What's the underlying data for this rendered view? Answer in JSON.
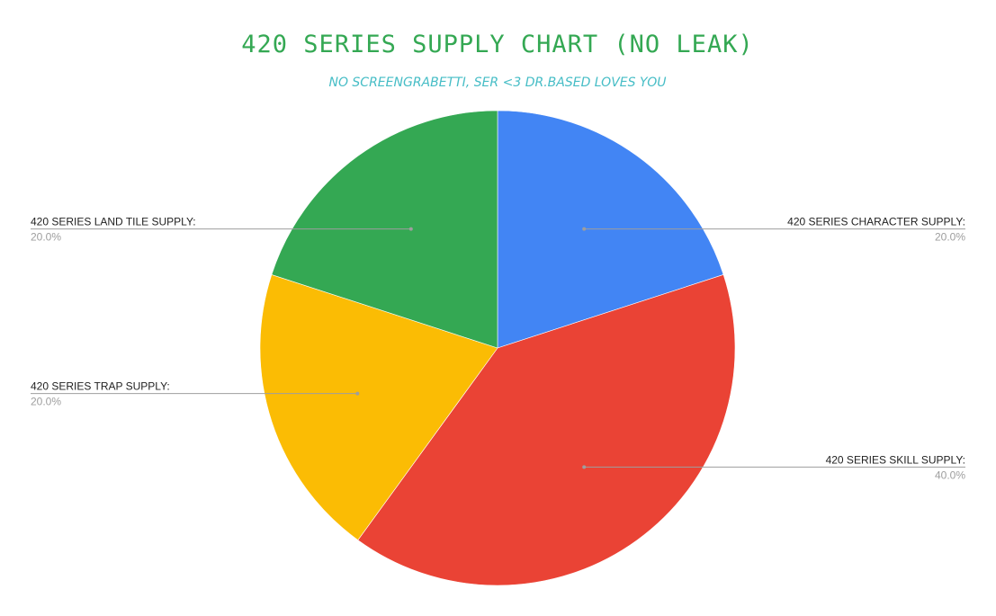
{
  "chart_data": {
    "type": "pie",
    "title": "420 SERIES SUPPLY CHART (NO LEAK)",
    "subtitle": "NO SCREENGRABETTI, SER <3 DR.BASED LOVES YOU",
    "title_color": "#34a853",
    "subtitle_color": "#46bdc6",
    "legend": "none (leader-line labels)",
    "slices": [
      {
        "label": "420 SERIES CHARACTER SUPPLY:",
        "value": 20,
        "percent_label": "20.0%",
        "color": "#4285f4"
      },
      {
        "label": "420 SERIES SKILL SUPPLY:",
        "value": 40,
        "percent_label": "40.0%",
        "color": "#ea4335"
      },
      {
        "label": "420 SERIES TRAP SUPPLY:",
        "value": 20,
        "percent_label": "20.0%",
        "color": "#fbbc04"
      },
      {
        "label": "420 SERIES LAND TILE SUPPLY:",
        "value": 20,
        "percent_label": "20.0%",
        "color": "#34a853"
      }
    ]
  }
}
